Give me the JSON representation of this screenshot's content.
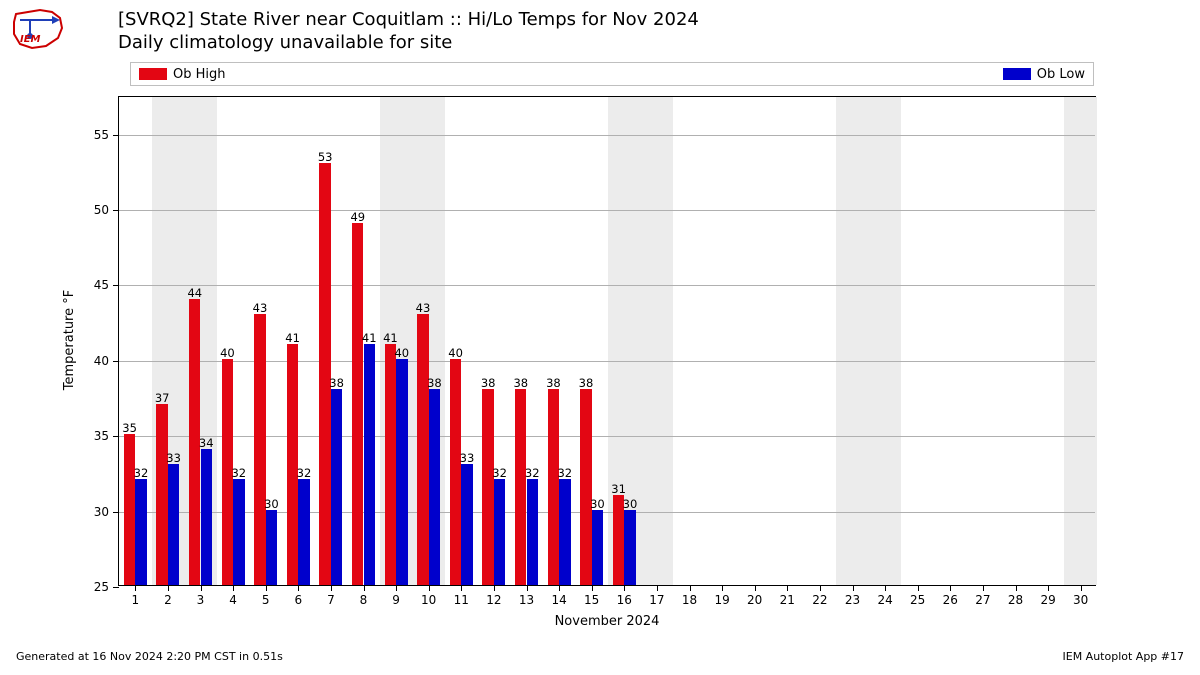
{
  "logo": {
    "text": "IEM",
    "border_color": "#cc0000",
    "accent_color": "#1f3fb8"
  },
  "title": {
    "line1": "[SVRQ2] State River near Coquitlam :: Hi/Lo Temps for Nov 2024",
    "line2": "Daily climatology unavailable for site",
    "fontsize": 18
  },
  "legend": {
    "items": [
      {
        "label": "Ob High",
        "color": "#e30613"
      },
      {
        "label": "Ob Low",
        "color": "#0000cc"
      }
    ],
    "border_color": "#bfbfbf",
    "label_fontsize": 13
  },
  "chart": {
    "type": "bar",
    "ylabel": "Temperature °F",
    "xlabel": "November 2024",
    "ylim": [
      25,
      57.5
    ],
    "yticks": [
      25,
      30,
      35,
      40,
      45,
      50,
      55
    ],
    "xlim": [
      0.5,
      30.5
    ],
    "xticks": [
      1,
      2,
      3,
      4,
      5,
      6,
      7,
      8,
      9,
      10,
      11,
      12,
      13,
      14,
      15,
      16,
      17,
      18,
      19,
      20,
      21,
      22,
      23,
      24,
      25,
      26,
      27,
      28,
      29,
      30
    ],
    "grid_color": "#b0b0b0",
    "background_color": "#ffffff",
    "weekend_band_color": "#ececec",
    "weekend_days": [
      2,
      3,
      9,
      10,
      16,
      17,
      23,
      24,
      30
    ],
    "bar_width": 0.35,
    "label_fontsize": 11.5,
    "axis_fontsize": 13,
    "tick_fontsize": 12,
    "series": {
      "high": {
        "color": "#e30613",
        "offset": -0.175,
        "values": {
          "1": 35,
          "2": 37,
          "3": 44,
          "4": 40,
          "5": 43,
          "6": 41,
          "7": 53,
          "8": 49,
          "9": 41,
          "10": 43,
          "11": 40,
          "12": 38,
          "13": 38,
          "14": 38,
          "15": 38,
          "16": 31
        }
      },
      "low": {
        "color": "#0000cc",
        "offset": 0.175,
        "values": {
          "1": 32,
          "2": 33,
          "3": 34,
          "4": 32,
          "5": 30,
          "6": 32,
          "7": 38,
          "8": 41,
          "9": 40,
          "10": 38,
          "11": 33,
          "12": 32,
          "13": 32,
          "14": 32,
          "15": 30,
          "16": 30
        }
      }
    }
  },
  "footer": {
    "left": "Generated at 16 Nov 2024 2:20 PM CST in 0.51s",
    "right": "IEM Autoplot App #17",
    "fontsize": 11
  }
}
